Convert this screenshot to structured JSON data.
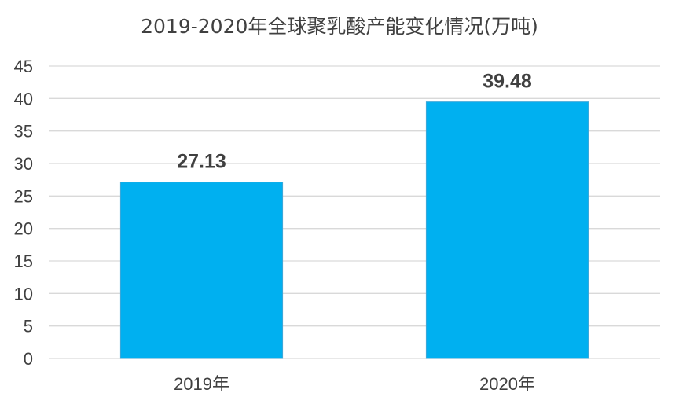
{
  "chart_data": {
    "type": "bar",
    "title": "2019-2020年全球聚乳酸产能变化情况(万吨)",
    "categories": [
      "2019年",
      "2020年"
    ],
    "values": [
      27.13,
      39.48
    ],
    "data_labels": [
      "27.13",
      "39.48"
    ],
    "y_ticks": [
      "0",
      "5",
      "10",
      "15",
      "20",
      "25",
      "30",
      "35",
      "40",
      "45"
    ],
    "ylim": [
      0,
      45
    ],
    "xlabel": "",
    "ylabel": "",
    "grid": true,
    "legend": "none",
    "colors": {
      "bar": "#00B0F0",
      "grid": "#D9D9D9",
      "axis_text": "#404040",
      "data_label": "#404040"
    }
  }
}
